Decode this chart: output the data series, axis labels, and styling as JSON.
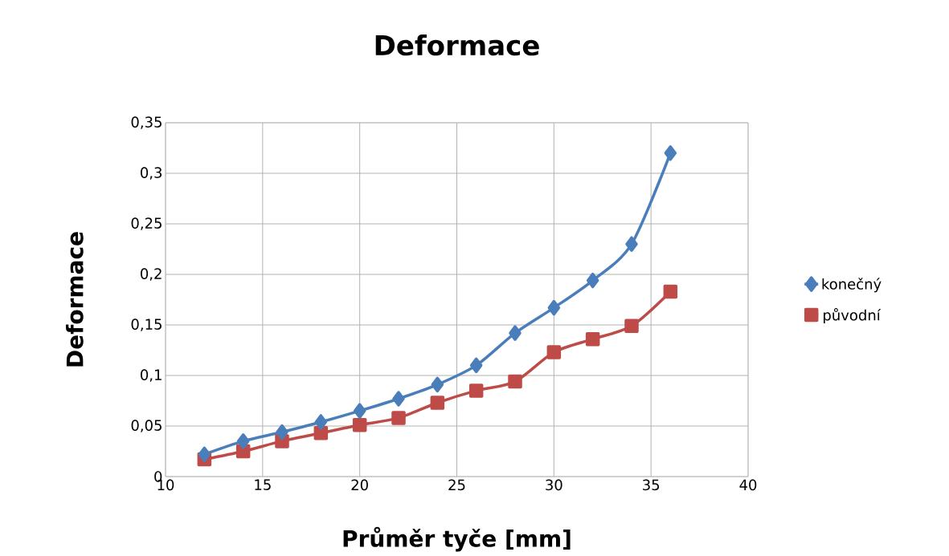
{
  "chart_data": {
    "type": "line",
    "title": "Deformace",
    "xlabel": "Průměr tyče [mm]",
    "ylabel": "Deformace",
    "x": [
      12,
      14,
      16,
      18,
      20,
      22,
      24,
      26,
      28,
      30,
      32,
      34,
      36
    ],
    "series": [
      {
        "name": "konečný",
        "color": "#4a7ebb",
        "marker": "diamond",
        "values": [
          0.022,
          0.035,
          0.044,
          0.054,
          0.065,
          0.077,
          0.091,
          0.11,
          0.142,
          0.167,
          0.194,
          0.23,
          0.32
        ]
      },
      {
        "name": "původní",
        "color": "#be4b48",
        "marker": "square",
        "values": [
          0.017,
          0.025,
          0.035,
          0.043,
          0.051,
          0.058,
          0.073,
          0.085,
          0.094,
          0.123,
          0.136,
          0.149,
          0.183
        ]
      }
    ],
    "xlim": [
      10,
      40
    ],
    "xticks": [
      10,
      15,
      20,
      25,
      30,
      35,
      40
    ],
    "ylim": [
      0,
      0.35
    ],
    "yticks": [
      0,
      {
        "value": 0.05,
        "label": "0,05"
      },
      {
        "value": 0.1,
        "label": "0,1"
      },
      {
        "value": 0.15,
        "label": "0,15"
      },
      {
        "value": 0.2,
        "label": "0,2"
      },
      {
        "value": 0.25,
        "label": "0,25"
      },
      {
        "value": 0.3,
        "label": "0,3"
      },
      {
        "value": 0.35,
        "label": "0,35"
      }
    ],
    "grid": true,
    "legend": "right",
    "line_style": "solid"
  }
}
